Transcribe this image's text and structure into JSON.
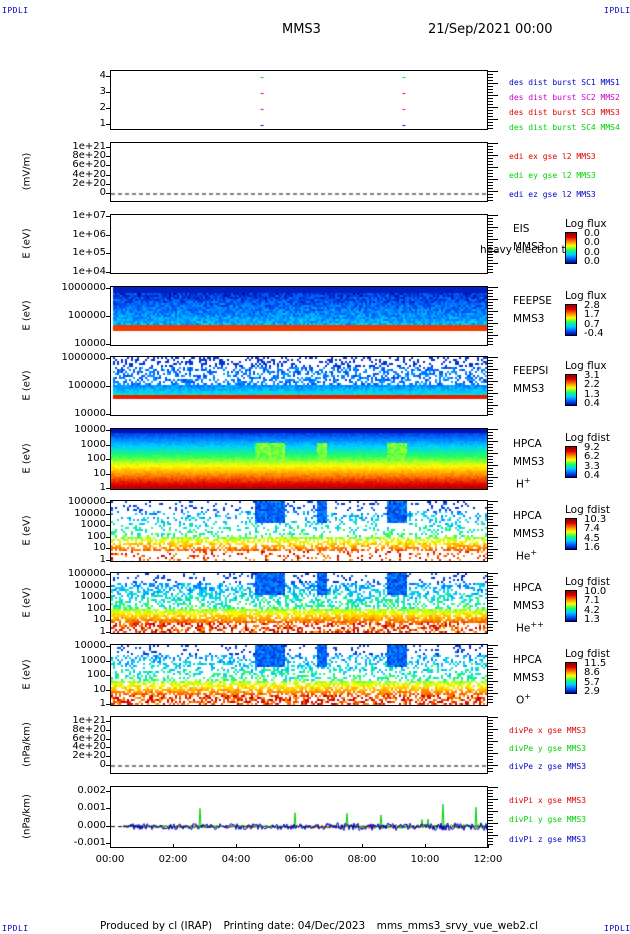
{
  "header": {
    "corner_tl": "IPDLI",
    "corner_tr": "IPDLI",
    "corner_bl": "IPDLI",
    "corner_br": "IPDLI",
    "spacecraft": "MMS3",
    "date": "21/Sep/2021 00:00"
  },
  "footer": {
    "produced": "Produced by cl (IRAP)",
    "printing": "Printing date: 04/Dec/2023",
    "script": "mms_mms3_srvy_vue_web2.cl"
  },
  "colors": {
    "red": "#e00000",
    "green": "#00d000",
    "blue": "#0000cc",
    "magenta": "#cc00cc"
  },
  "chart_data": [
    {
      "type": "scatter",
      "id": "burst",
      "yticks": [
        "4",
        "3",
        "2",
        "1"
      ],
      "ylim": [
        0.5,
        4.5
      ],
      "legend": [
        "des dist burst SC1 MMS1",
        "des dist burst SC2 MMS2",
        "des dist burst SC3 MMS3",
        "des dist burst SC4 MMS4"
      ],
      "series": [
        {
          "name": "des dist burst SC1 MMS1",
          "x": [
            4.75,
            9.25
          ],
          "y": [
            1,
            1
          ]
        },
        {
          "name": "des dist burst SC2 MMS2",
          "x": [
            4.75,
            9.25
          ],
          "y": [
            2,
            2
          ]
        },
        {
          "name": "des dist burst SC3 MMS3",
          "x": [
            4.75,
            9.25
          ],
          "y": [
            3,
            3
          ]
        },
        {
          "name": "des dist burst SC4 MMS4",
          "x": [
            4.75,
            9.25
          ],
          "y": [
            4,
            4
          ]
        }
      ]
    },
    {
      "type": "line",
      "id": "edi",
      "ylabel": "(mV/m)",
      "yticks": [
        "1e+21",
        "8e+20",
        "6e+20",
        "4e+20",
        "2e+20",
        "0"
      ],
      "legend": [
        "edi ex gse l2 MMS3",
        "edi ey gse l2 MMS3",
        "edi ez gse l2 MMS3"
      ]
    },
    {
      "type": "heatmap",
      "id": "eis",
      "ylabel": "E (eV)",
      "yticks": [
        "1e+07",
        "1e+06",
        "1e+05",
        "1e+04"
      ],
      "instrument": "EIS",
      "sc": "MMS3",
      "overlay": "heavy electron to",
      "cb_title": "Log flux",
      "cb_ticks": [
        "0.0",
        "0.0",
        "0.0",
        "0.0"
      ]
    },
    {
      "type": "heatmap",
      "id": "feepse",
      "ylabel": "E (eV)",
      "yticks": [
        "1000000",
        "100000",
        "10000"
      ],
      "instrument": "FEEPSE",
      "sc": "MMS3",
      "cb_title": "Log flux",
      "cb_ticks": [
        "2.8",
        "1.7",
        "0.7",
        "-0.4"
      ]
    },
    {
      "type": "heatmap",
      "id": "feepsi",
      "ylabel": "E (eV)",
      "yticks": [
        "1000000",
        "100000",
        "10000"
      ],
      "instrument": "FEEPSI",
      "sc": "MMS3",
      "cb_title": "Log flux",
      "cb_ticks": [
        "3.1",
        "2.2",
        "1.3",
        "0.4"
      ]
    },
    {
      "type": "heatmap",
      "id": "hpca_h",
      "ylabel": "E (eV)",
      "yticks": [
        "10000",
        "1000",
        "100",
        "10",
        "1"
      ],
      "instrument": "HPCA",
      "sc": "MMS3",
      "species": "H",
      "sup": "+",
      "cb_title": "Log fdist",
      "cb_ticks": [
        "9.2",
        "6.2",
        "3.3",
        "0.4"
      ]
    },
    {
      "type": "heatmap",
      "id": "hpca_he",
      "ylabel": "E (eV)",
      "yticks": [
        "100000",
        "10000",
        "1000",
        "100",
        "10",
        "1"
      ],
      "instrument": "HPCA",
      "sc": "MMS3",
      "species": "He",
      "sup": "+",
      "cb_title": "Log fdist",
      "cb_ticks": [
        "10.3",
        "7.4",
        "4.5",
        "1.6"
      ]
    },
    {
      "type": "heatmap",
      "id": "hpca_hepp",
      "ylabel": "E (eV)",
      "yticks": [
        "100000",
        "10000",
        "1000",
        "100",
        "10",
        "1"
      ],
      "instrument": "HPCA",
      "sc": "MMS3",
      "species": "He",
      "sup": "++",
      "cb_title": "Log fdist",
      "cb_ticks": [
        "10.0",
        "7.1",
        "4.2",
        "1.3"
      ]
    },
    {
      "type": "heatmap",
      "id": "hpca_o",
      "ylabel": "E (eV)",
      "yticks": [
        "10000",
        "1000",
        "100",
        "10",
        "1"
      ],
      "instrument": "HPCA",
      "sc": "MMS3",
      "species": "O",
      "sup": "+",
      "cb_title": "Log fdist",
      "cb_ticks": [
        "11.5",
        "8.6",
        "5.7",
        "2.9"
      ]
    },
    {
      "type": "line",
      "id": "dpe",
      "ylabel": "(nPa/km)",
      "yticks": [
        "1e+21",
        "8e+20",
        "6e+20",
        "4e+20",
        "2e+20",
        "0"
      ],
      "legend": [
        "divPe x gse MMS3",
        "divPe y gse MMS3",
        "divPe z gse MMS3"
      ]
    },
    {
      "type": "line",
      "id": "dpi",
      "ylabel": "(nPa/km)",
      "yticks": [
        "0.002",
        "0.001",
        "0.000",
        "-0.001"
      ],
      "ylim": [
        -0.0013,
        0.0023
      ],
      "legend": [
        "divPi x gse MMS3",
        "divPi y gse MMS3",
        "divPi z gse MMS3"
      ]
    }
  ],
  "xaxis": {
    "ticks": [
      "00:00",
      "02:00",
      "04:00",
      "06:00",
      "08:00",
      "10:00",
      "12:00"
    ],
    "xlim": [
      0,
      12
    ]
  }
}
